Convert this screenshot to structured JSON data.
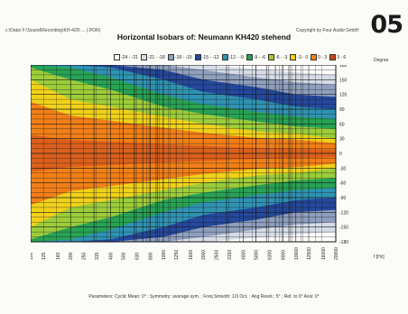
{
  "header": {
    "left_path": "c:\\Data\\ F:\\Sound\\Recording\\KH-420\\ ... (.POR)",
    "title": "Horizontal Isobars of:  Neumann  KH420  stehend",
    "right_note": "Copyright by Four Audio GmbH",
    "badge": "05"
  },
  "legend": {
    "items": [
      {
        "label": "-24 - -21",
        "color": "#ffffff"
      },
      {
        "label": "-21 - -18",
        "color": "#d7dde8"
      },
      {
        "label": "-18 - -15",
        "color": "#8f9fbf"
      },
      {
        "label": "-15 - -12",
        "color": "#24489c"
      },
      {
        "label": "-12 - -9",
        "color": "#2f93b3"
      },
      {
        "label": "-9 - -6",
        "color": "#27a354"
      },
      {
        "label": "-6 - -3",
        "color": "#9ccd3a"
      },
      {
        "label": "-3 - 0",
        "color": "#f1d21a"
      },
      {
        "label": "0 - 3",
        "color": "#f27f17"
      },
      {
        "label": "3 - 6",
        "color": "#c9471f"
      }
    ]
  },
  "axes": {
    "y_title": "Degree",
    "x_unit": "f [Hz]"
  },
  "parameters": "Parameters:  Cyclic Mean: 0° ;  Symmetry: average sym. ;  Freq Smooth: 1/3 Oct. ;  Ang Resol.: 5° ;  Ref. to 0° Axis: 0°",
  "chart_data": {
    "type": "heatmap",
    "title": "Horizontal Isobars of:  Neumann  KH420  stehend",
    "xlabel": "f [Hz]",
    "ylabel": "Degree",
    "x_scale": "log",
    "xlim": [
      100,
      20000
    ],
    "ylim": [
      -180,
      180
    ],
    "x_ticks": [
      "100",
      "125",
      "160",
      "200",
      "250",
      "315",
      "400",
      "500",
      "630",
      "800",
      "1000",
      "1250",
      "1600",
      "2000",
      "2500",
      "3150",
      "4000",
      "5000",
      "6300",
      "8000",
      "10000",
      "12500",
      "16000",
      "20000"
    ],
    "y_ticks": [
      180,
      150,
      120,
      90,
      60,
      30,
      0,
      -30,
      -60,
      -90,
      -120,
      -150,
      -180
    ],
    "levels": [
      {
        "range": "-24 - -21",
        "color": "#ffffff"
      },
      {
        "range": "-21 - -18",
        "color": "#d7dde8"
      },
      {
        "range": "-18 - -15",
        "color": "#8f9fbf"
      },
      {
        "range": "-15 - -12",
        "color": "#24489c"
      },
      {
        "range": "-12 - -9",
        "color": "#2f93b3"
      },
      {
        "range": "-9 - -6",
        "color": "#27a354"
      },
      {
        "range": "-6 - -3",
        "color": "#9ccd3a"
      },
      {
        "range": "-3 - 0",
        "color": "#f1d21a"
      },
      {
        "range": "0 - 3",
        "color": "#f27f17"
      },
      {
        "range": "3 - 6",
        "color": "#c9471f"
      }
    ],
    "contour_boundaries_deg": {
      "freq_hz": [
        100,
        200,
        400,
        1000,
        2000,
        5000,
        10000,
        20000
      ],
      "edge_3dB": [
        150,
        110,
        95,
        75,
        60,
        45,
        40,
        30
      ],
      "edge_6dB": [
        175,
        150,
        130,
        95,
        80,
        65,
        55,
        50
      ],
      "edge_9dB": [
        180,
        175,
        155,
        120,
        100,
        85,
        75,
        70
      ],
      "edge_12dB": [
        180,
        180,
        175,
        150,
        125,
        110,
        95,
        90
      ],
      "edge_15dB": [
        180,
        180,
        180,
        170,
        150,
        135,
        120,
        115
      ],
      "edge_18dB": [
        180,
        180,
        180,
        180,
        170,
        155,
        145,
        140
      ],
      "edge_21dB": [
        180,
        180,
        180,
        180,
        180,
        172,
        165,
        160
      ]
    }
  }
}
